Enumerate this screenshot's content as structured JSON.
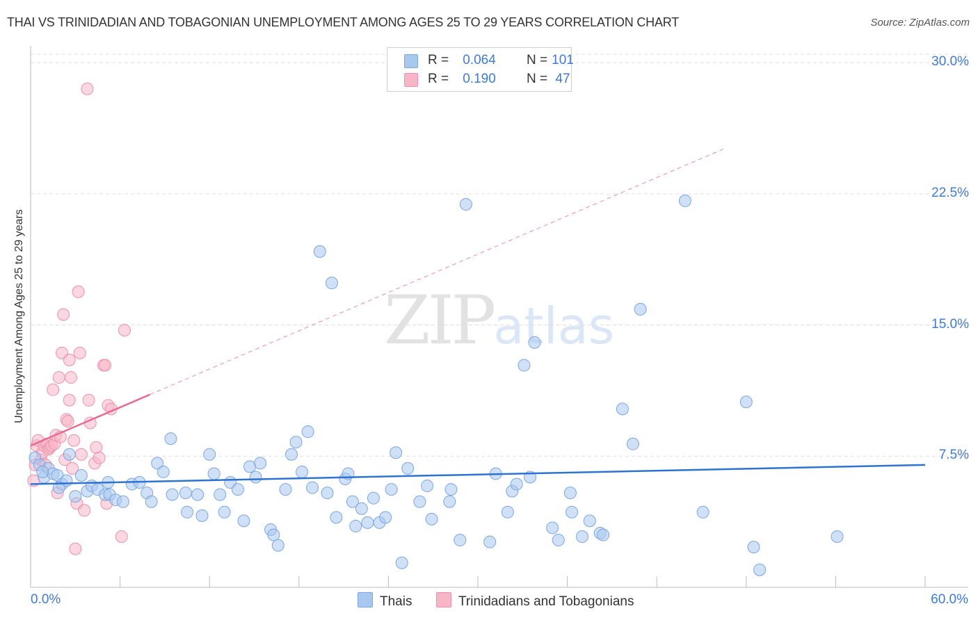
{
  "header": {
    "title": "THAI VS TRINIDADIAN AND TOBAGONIAN UNEMPLOYMENT AMONG AGES 25 TO 29 YEARS CORRELATION CHART",
    "source": "Source: ZipAtlas.com"
  },
  "stats": {
    "thais": {
      "r_label": "R =",
      "r_value": "0.064",
      "n_label": "N =",
      "n_value": "101",
      "color": "#a9c8f0"
    },
    "trini": {
      "r_label": "R =",
      "r_value": "0.190",
      "n_label": "N =",
      "n_value": "47",
      "color": "#f7b6c8"
    }
  },
  "legend": {
    "thais": "Thais",
    "trini": "Trinidadians and Tobagonians"
  },
  "watermark": {
    "zip": "ZIP",
    "atlas": "atlas"
  },
  "colors": {
    "blue_fill": "#a9c8f0",
    "blue_stroke": "#7aa6e0",
    "blue_line": "#2e72d2",
    "pink_fill": "#f7b6c8",
    "pink_stroke": "#ee8fac",
    "pink_line": "#e86b93",
    "grid": "#dddddd",
    "axis_text": "#3d7ad6"
  },
  "chart_data": {
    "type": "scatter",
    "title": "THAI VS TRINIDADIAN AND TOBAGONIAN UNEMPLOYMENT AMONG AGES 25 TO 29 YEARS CORRELATION CHART",
    "xlabel": "",
    "ylabel": "Unemployment Among Ages 25 to 29 years",
    "xlim": [
      0,
      60
    ],
    "ylim": [
      0,
      30.8
    ],
    "x_tick_labels": [
      "0.0%",
      "60.0%"
    ],
    "y_ticks": [
      7.5,
      15.0,
      22.5,
      30.0
    ],
    "y_tick_labels": [
      "7.5%",
      "15.0%",
      "22.5%",
      "30.0%"
    ],
    "grid": true,
    "series": [
      {
        "name": "Thais",
        "r": 0.064,
        "n": 101,
        "trend": {
          "x": [
            0,
            60
          ],
          "y": [
            5.9,
            7.0
          ],
          "style": "solid"
        },
        "points": [
          [
            0.3,
            7.4
          ],
          [
            0.6,
            7.0
          ],
          [
            0.9,
            6.3
          ],
          [
            1.2,
            6.8
          ],
          [
            1.5,
            6.5
          ],
          [
            1.8,
            6.4
          ],
          [
            2.1,
            5.9
          ],
          [
            2.4,
            6.1
          ],
          [
            2.6,
            7.6
          ],
          [
            3.0,
            5.2
          ],
          [
            3.4,
            6.4
          ],
          [
            3.8,
            5.5
          ],
          [
            4.1,
            5.8
          ],
          [
            4.5,
            5.6
          ],
          [
            5.0,
            5.3
          ],
          [
            5.3,
            5.3
          ],
          [
            5.7,
            5.0
          ],
          [
            6.2,
            4.9
          ],
          [
            6.8,
            5.9
          ],
          [
            7.3,
            6.0
          ],
          [
            7.8,
            5.4
          ],
          [
            8.1,
            4.9
          ],
          [
            8.5,
            7.1
          ],
          [
            8.9,
            6.6
          ],
          [
            9.5,
            5.3
          ],
          [
            9.4,
            8.5
          ],
          [
            10.4,
            5.4
          ],
          [
            10.5,
            4.3
          ],
          [
            11.2,
            5.3
          ],
          [
            11.5,
            4.1
          ],
          [
            12.0,
            7.6
          ],
          [
            12.3,
            6.5
          ],
          [
            12.7,
            5.3
          ],
          [
            13.0,
            4.3
          ],
          [
            13.4,
            6.0
          ],
          [
            13.9,
            5.6
          ],
          [
            14.3,
            3.8
          ],
          [
            14.7,
            6.9
          ],
          [
            15.1,
            6.3
          ],
          [
            15.4,
            7.1
          ],
          [
            16.1,
            3.3
          ],
          [
            16.3,
            3.0
          ],
          [
            16.6,
            2.4
          ],
          [
            17.1,
            5.6
          ],
          [
            17.5,
            7.6
          ],
          [
            17.8,
            8.3
          ],
          [
            18.2,
            6.6
          ],
          [
            18.6,
            8.9
          ],
          [
            18.9,
            5.7
          ],
          [
            19.4,
            19.2
          ],
          [
            19.9,
            5.4
          ],
          [
            20.2,
            17.4
          ],
          [
            20.5,
            4.0
          ],
          [
            21.1,
            6.2
          ],
          [
            21.3,
            6.5
          ],
          [
            21.6,
            4.9
          ],
          [
            21.8,
            3.5
          ],
          [
            22.2,
            4.5
          ],
          [
            22.6,
            3.7
          ],
          [
            23.0,
            5.1
          ],
          [
            23.4,
            3.7
          ],
          [
            23.8,
            4.0
          ],
          [
            24.2,
            5.6
          ],
          [
            24.5,
            7.7
          ],
          [
            24.9,
            1.4
          ],
          [
            25.3,
            6.8
          ],
          [
            26.1,
            4.9
          ],
          [
            26.6,
            5.8
          ],
          [
            26.9,
            3.9
          ],
          [
            28.1,
            4.9
          ],
          [
            28.2,
            5.6
          ],
          [
            28.8,
            2.7
          ],
          [
            29.2,
            21.9
          ],
          [
            30.8,
            2.6
          ],
          [
            31.2,
            6.5
          ],
          [
            32.0,
            4.3
          ],
          [
            32.3,
            5.5
          ],
          [
            32.6,
            5.9
          ],
          [
            33.1,
            12.7
          ],
          [
            33.5,
            6.3
          ],
          [
            33.8,
            14.0
          ],
          [
            35.0,
            3.4
          ],
          [
            35.4,
            2.7
          ],
          [
            36.2,
            5.4
          ],
          [
            36.3,
            4.3
          ],
          [
            37.0,
            2.9
          ],
          [
            37.5,
            3.8
          ],
          [
            38.2,
            3.1
          ],
          [
            38.4,
            3.0
          ],
          [
            39.7,
            10.2
          ],
          [
            40.4,
            8.2
          ],
          [
            40.9,
            15.9
          ],
          [
            43.9,
            22.1
          ],
          [
            45.1,
            4.3
          ],
          [
            48.0,
            10.6
          ],
          [
            48.5,
            2.3
          ],
          [
            48.9,
            1.0
          ],
          [
            54.1,
            2.9
          ],
          [
            0.8,
            6.6
          ],
          [
            1.9,
            5.7
          ],
          [
            5.2,
            6.0
          ]
        ]
      },
      {
        "name": "Trinidadians and Tobagonians",
        "r": 0.19,
        "n": 47,
        "trend": {
          "x": [
            0,
            60
          ],
          "y": [
            8.1,
            30.0
          ],
          "solid_until_x": 8.0,
          "style": "solid-then-dashed"
        },
        "points": [
          [
            0.2,
            6.1
          ],
          [
            0.3,
            7.0
          ],
          [
            0.4,
            8.1
          ],
          [
            0.5,
            8.4
          ],
          [
            0.7,
            7.3
          ],
          [
            0.8,
            7.7
          ],
          [
            0.9,
            8.1
          ],
          [
            1.0,
            7.0
          ],
          [
            1.1,
            8.2
          ],
          [
            1.2,
            7.9
          ],
          [
            1.3,
            8.0
          ],
          [
            1.4,
            8.1
          ],
          [
            1.5,
            11.3
          ],
          [
            1.6,
            8.2
          ],
          [
            1.7,
            8.7
          ],
          [
            1.8,
            5.4
          ],
          [
            1.9,
            12.0
          ],
          [
            2.0,
            8.6
          ],
          [
            2.1,
            13.4
          ],
          [
            2.2,
            15.6
          ],
          [
            2.3,
            7.3
          ],
          [
            2.4,
            9.6
          ],
          [
            2.5,
            9.5
          ],
          [
            2.6,
            13.0
          ],
          [
            2.6,
            10.7
          ],
          [
            2.7,
            12.0
          ],
          [
            2.8,
            6.8
          ],
          [
            2.9,
            8.4
          ],
          [
            3.0,
            2.2
          ],
          [
            3.1,
            4.8
          ],
          [
            3.2,
            16.9
          ],
          [
            3.3,
            13.4
          ],
          [
            3.4,
            7.6
          ],
          [
            3.6,
            4.4
          ],
          [
            3.8,
            28.5
          ],
          [
            3.9,
            10.7
          ],
          [
            4.0,
            9.4
          ],
          [
            4.3,
            7.1
          ],
          [
            4.4,
            8.0
          ],
          [
            4.6,
            7.4
          ],
          [
            4.9,
            12.7
          ],
          [
            5.0,
            12.7
          ],
          [
            5.1,
            4.8
          ],
          [
            5.2,
            10.4
          ],
          [
            5.4,
            10.2
          ],
          [
            6.1,
            2.9
          ],
          [
            6.3,
            14.7
          ]
        ]
      }
    ]
  }
}
